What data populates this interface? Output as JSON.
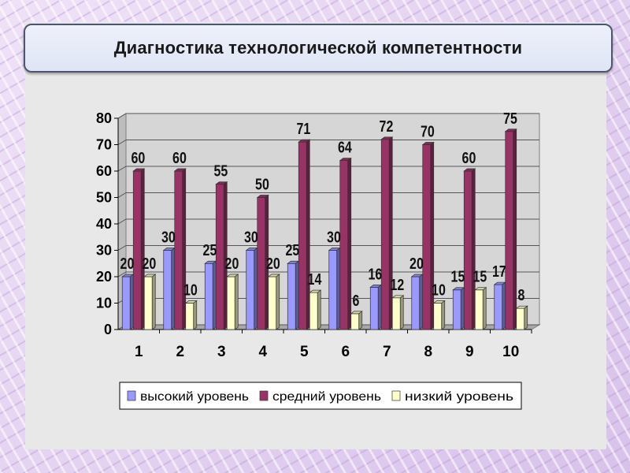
{
  "page": {
    "title": "Диагностика технологической компетентности"
  },
  "chart_data": {
    "type": "bar",
    "categories": [
      "1",
      "2",
      "3",
      "4",
      "5",
      "6",
      "7",
      "8",
      "9",
      "10"
    ],
    "series": [
      {
        "name": "высокий уровень",
        "color": "#9999ff",
        "values": [
          20,
          30,
          25,
          30,
          25,
          30,
          16,
          20,
          15,
          17
        ]
      },
      {
        "name": "средний уровень",
        "color": "#993366",
        "values": [
          60,
          60,
          55,
          50,
          71,
          64,
          72,
          70,
          60,
          75
        ]
      },
      {
        "name": "низкий уровень",
        "color": "#ffffcc",
        "values": [
          20,
          10,
          20,
          20,
          14,
          6,
          12,
          10,
          15,
          8
        ]
      }
    ],
    "yticks": [
      "0",
      "10",
      "20",
      "30",
      "40",
      "50",
      "60",
      "70",
      "80"
    ],
    "ylim": [
      0,
      80
    ],
    "grid": true,
    "legend": "bottom"
  }
}
